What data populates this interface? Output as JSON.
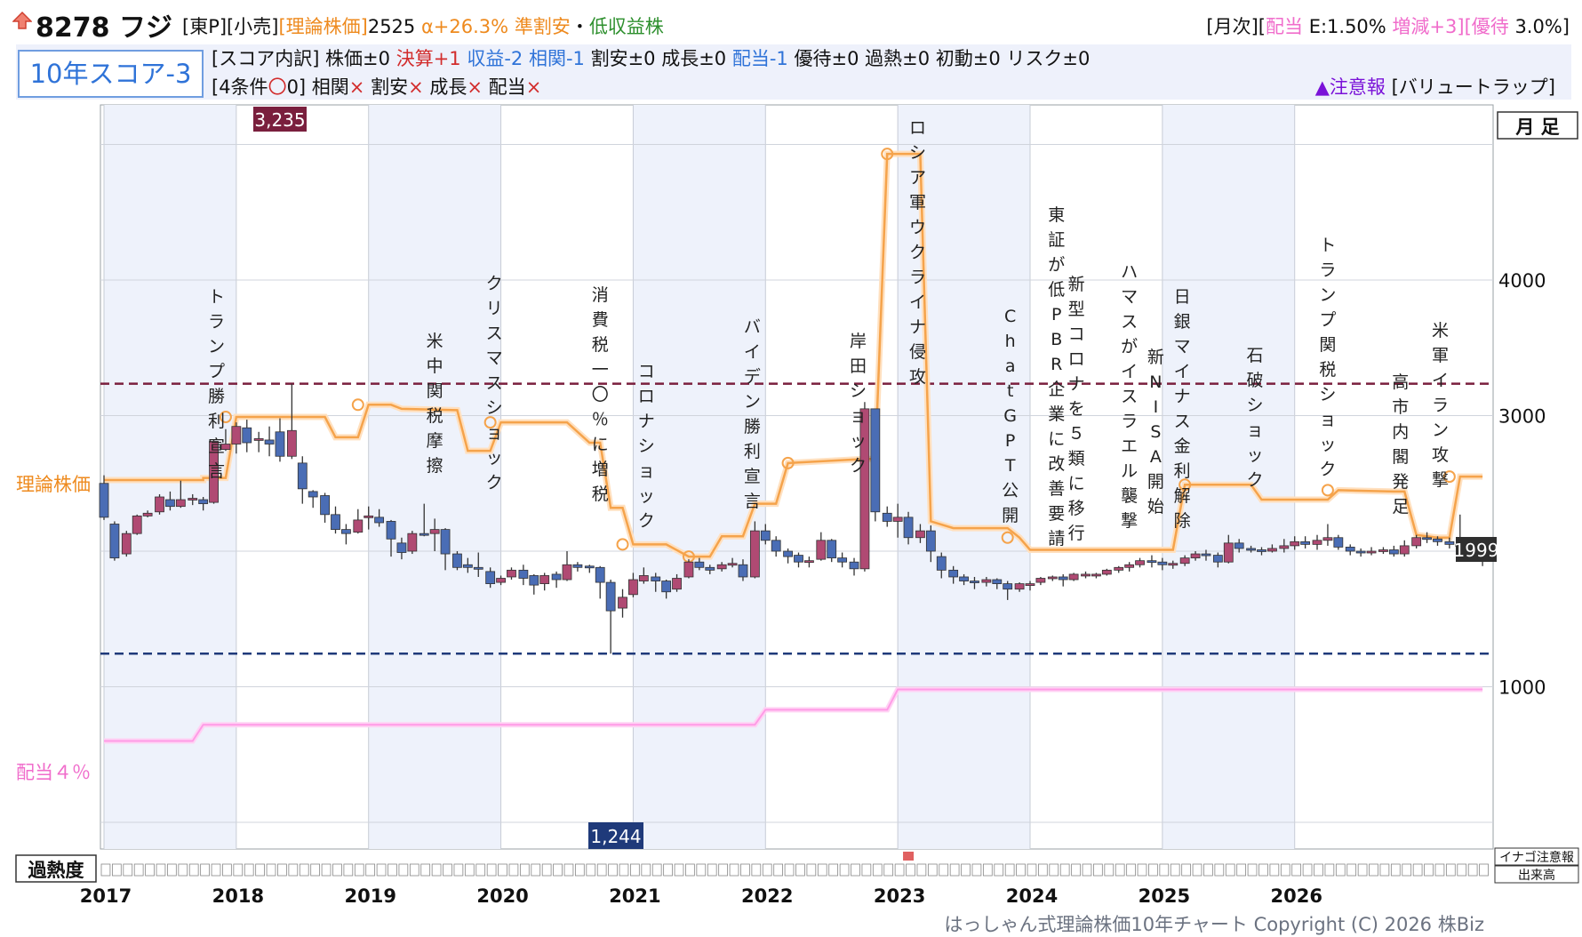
{
  "header": {
    "title": "8278 フジ",
    "meta_a": "[東P][小売]",
    "meta_b": "[理論株価]",
    "meta_c": "2525",
    "meta_d": "α+26.3%",
    "meta_e": "準割安",
    "meta_f": "・",
    "meta_g": "低収益株",
    "right_a": "[月次][",
    "right_b": "配当",
    "right_c": " E:1.50% ",
    "right_d": "増減+3][優待",
    "right_e": " 3.0%]"
  },
  "score": {
    "label": "10年スコア-3",
    "b1": "[スコア内訳] 株価±0 ",
    "b2": "決算+1",
    "b3": " 収益-2 相関-1",
    "b4": " 割安±0 成長±0 ",
    "b5": "配当-1",
    "b6": " 優待±0 過熱±0 初動±0 リスク±0",
    "c1": "[4条件",
    "c2": "〇",
    "c3": "0] 相関",
    "c4": "×",
    "c5": " 割安",
    "c6": "×",
    "c7": " 成長",
    "c8": "×",
    "c9": " 配当",
    "c10": "×",
    "warn1": "▲注意報",
    "warn2": " [バリュートラップ]"
  },
  "legend": {
    "theory": "理論株価",
    "dividend": "配当４％",
    "period": "月 足",
    "overheat": "過熱度",
    "inago": "イナゴ注意報",
    "volume": "出来高"
  },
  "footer": "はっしゃん式理論株価10年チャート Copyright (C) 2026 株Biz",
  "chart_data": {
    "type": "candlestick",
    "ylim": [
      0,
      5000
    ],
    "yticks": [
      1000,
      3000,
      4000
    ],
    "xticks": [
      "2017",
      "2018",
      "2019",
      "2020",
      "2021",
      "2022",
      "2023",
      "2024",
      "2025",
      "2026"
    ],
    "high_label": "3,235",
    "low_label": "1,244",
    "price_label": "1999",
    "high_level": 3235,
    "low_level": 1244,
    "colors": {
      "up": "#b04a73",
      "down": "#4a6db5",
      "theory": "#f5a34b",
      "dividend": "#ff9be6",
      "high": "#7a1f3d",
      "low": "#1f3a7a"
    },
    "events": [
      {
        "x": 2016.85,
        "label": "トランプ勝利宣言"
      },
      {
        "x": 2018.5,
        "label": "米中関税摩擦"
      },
      {
        "x": 2018.95,
        "label": "クリスマスショック"
      },
      {
        "x": 2019.75,
        "label": "消費税一〇％に増税"
      },
      {
        "x": 2020.1,
        "label": "コロナショック"
      },
      {
        "x": 2020.9,
        "label": "バイデン勝利宣言"
      },
      {
        "x": 2021.7,
        "label": "岸田ショック"
      },
      {
        "x": 2022.15,
        "label": "ロシア軍ウクライナ侵攻"
      },
      {
        "x": 2022.85,
        "label": "ChatGPT公開"
      },
      {
        "x": 2023.2,
        "label": "東証が低PBR企業に改善要請"
      },
      {
        "x": 2023.35,
        "label": "新型コロナを５類に移行"
      },
      {
        "x": 2023.75,
        "label": "ハマスがイスラエル襲撃"
      },
      {
        "x": 2023.95,
        "label": "新NISA開始"
      },
      {
        "x": 2024.15,
        "label": "日銀マイナス金利解除"
      },
      {
        "x": 2024.7,
        "label": "石破ショック"
      },
      {
        "x": 2025.25,
        "label": "トランプ関税ショック"
      },
      {
        "x": 2025.8,
        "label": "高市内閣発足"
      },
      {
        "x": 2026.1,
        "label": "米軍イラン攻撃"
      }
    ],
    "candles": [
      [
        2016.0,
        2500,
        2250,
        2560,
        2230
      ],
      [
        2016.08,
        2200,
        1950,
        2220,
        1930
      ],
      [
        2016.17,
        1980,
        2130,
        2150,
        1960
      ],
      [
        2016.25,
        2130,
        2260,
        2270,
        2120
      ],
      [
        2016.33,
        2260,
        2280,
        2300,
        2250
      ],
      [
        2016.42,
        2290,
        2400,
        2420,
        2270
      ],
      [
        2016.5,
        2380,
        2330,
        2440,
        2300
      ],
      [
        2016.58,
        2330,
        2380,
        2520,
        2320
      ],
      [
        2016.67,
        2380,
        2390,
        2420,
        2340
      ],
      [
        2016.75,
        2380,
        2350,
        2400,
        2300
      ],
      [
        2016.83,
        2360,
        2810,
        2820,
        2350
      ],
      [
        2016.92,
        2750,
        2790,
        2900,
        2740
      ],
      [
        2017.0,
        2790,
        2920,
        2950,
        2720
      ],
      [
        2017.08,
        2910,
        2800,
        2970,
        2730
      ],
      [
        2017.17,
        2820,
        2830,
        2880,
        2730
      ],
      [
        2017.25,
        2820,
        2790,
        2920,
        2700
      ],
      [
        2017.33,
        2880,
        2700,
        2980,
        2660
      ],
      [
        2017.42,
        2700,
        2890,
        3235,
        2680
      ],
      [
        2017.5,
        2650,
        2460,
        2700,
        2350
      ],
      [
        2017.58,
        2440,
        2400,
        2450,
        2320
      ],
      [
        2017.67,
        2410,
        2270,
        2430,
        2210
      ],
      [
        2017.75,
        2270,
        2160,
        2330,
        2130
      ],
      [
        2017.83,
        2160,
        2130,
        2200,
        2050
      ],
      [
        2017.92,
        2140,
        2230,
        2310,
        2130
      ],
      [
        2018.0,
        2250,
        2260,
        2330,
        2160
      ],
      [
        2018.08,
        2250,
        2210,
        2310,
        2180
      ],
      [
        2018.17,
        2220,
        2090,
        2230,
        1960
      ],
      [
        2018.25,
        2060,
        1990,
        2100,
        1940
      ],
      [
        2018.33,
        2000,
        2130,
        2150,
        1980
      ],
      [
        2018.42,
        2130,
        2120,
        2350,
        2110
      ],
      [
        2018.5,
        2130,
        2160,
        2240,
        2000
      ],
      [
        2018.58,
        2160,
        1980,
        2170,
        1860
      ],
      [
        2018.67,
        1980,
        1880,
        2000,
        1860
      ],
      [
        2018.75,
        1900,
        1880,
        1950,
        1840
      ],
      [
        2018.83,
        1880,
        1870,
        1990,
        1810
      ],
      [
        2018.92,
        1850,
        1760,
        1880,
        1730
      ],
      [
        2019.0,
        1770,
        1800,
        1820,
        1750
      ],
      [
        2019.08,
        1810,
        1860,
        1880,
        1790
      ],
      [
        2019.17,
        1860,
        1800,
        1900,
        1750
      ],
      [
        2019.25,
        1820,
        1750,
        1830,
        1680
      ],
      [
        2019.33,
        1760,
        1820,
        1840,
        1710
      ],
      [
        2019.42,
        1830,
        1790,
        1850,
        1730
      ],
      [
        2019.5,
        1790,
        1900,
        2000,
        1780
      ],
      [
        2019.58,
        1900,
        1880,
        1920,
        1850
      ],
      [
        2019.67,
        1890,
        1880,
        1900,
        1840
      ],
      [
        2019.75,
        1880,
        1770,
        1890,
        1650
      ],
      [
        2019.83,
        1770,
        1560,
        1790,
        1244
      ],
      [
        2019.92,
        1580,
        1660,
        1720,
        1510
      ],
      [
        2020.0,
        1680,
        1790,
        1840,
        1660
      ],
      [
        2020.08,
        1780,
        1820,
        1880,
        1760
      ],
      [
        2020.17,
        1810,
        1780,
        1840,
        1700
      ],
      [
        2020.25,
        1780,
        1700,
        1790,
        1650
      ],
      [
        2020.33,
        1720,
        1800,
        1830,
        1700
      ],
      [
        2020.42,
        1810,
        1920,
        1940,
        1800
      ],
      [
        2020.5,
        1920,
        1880,
        1950,
        1860
      ],
      [
        2020.58,
        1880,
        1860,
        1900,
        1830
      ],
      [
        2020.67,
        1870,
        1900,
        1920,
        1850
      ],
      [
        2020.75,
        1900,
        1910,
        1950,
        1880
      ],
      [
        2020.83,
        1900,
        1810,
        1940,
        1780
      ],
      [
        2020.92,
        1810,
        2150,
        2220,
        1800
      ],
      [
        2021.0,
        2150,
        2080,
        2200,
        2050
      ],
      [
        2021.08,
        2080,
        2000,
        2110,
        1960
      ],
      [
        2021.17,
        2000,
        1960,
        2020,
        1910
      ],
      [
        2021.25,
        1970,
        1920,
        1990,
        1880
      ],
      [
        2021.33,
        1920,
        1930,
        1960,
        1880
      ],
      [
        2021.42,
        1940,
        2080,
        2140,
        1930
      ],
      [
        2021.5,
        2080,
        1950,
        2090,
        1920
      ],
      [
        2021.58,
        1950,
        1920,
        1990,
        1880
      ],
      [
        2021.67,
        1920,
        1870,
        1950,
        1820
      ],
      [
        2021.75,
        1870,
        3050,
        3100,
        1850
      ],
      [
        2021.83,
        3050,
        2290,
        2600,
        2220
      ],
      [
        2021.92,
        2280,
        2220,
        2330,
        2180
      ],
      [
        2022.0,
        2220,
        2250,
        2350,
        2100
      ],
      [
        2022.08,
        2250,
        2100,
        2290,
        2050
      ],
      [
        2022.17,
        2100,
        2150,
        2200,
        2060
      ],
      [
        2022.25,
        2150,
        2000,
        2190,
        1920
      ],
      [
        2022.33,
        1960,
        1860,
        1990,
        1800
      ],
      [
        2022.42,
        1860,
        1810,
        1890,
        1760
      ],
      [
        2022.5,
        1810,
        1780,
        1830,
        1750
      ],
      [
        2022.58,
        1780,
        1770,
        1810,
        1720
      ],
      [
        2022.67,
        1770,
        1790,
        1810,
        1740
      ],
      [
        2022.75,
        1790,
        1760,
        1800,
        1720
      ],
      [
        2022.83,
        1760,
        1720,
        1780,
        1640
      ],
      [
        2022.92,
        1720,
        1760,
        1770,
        1700
      ],
      [
        2023.0,
        1760,
        1760,
        1780,
        1710
      ],
      [
        2023.08,
        1770,
        1800,
        1810,
        1750
      ],
      [
        2023.17,
        1800,
        1810,
        1820,
        1780
      ],
      [
        2023.25,
        1810,
        1790,
        1830,
        1740
      ],
      [
        2023.33,
        1790,
        1830,
        1840,
        1780
      ],
      [
        2023.42,
        1830,
        1830,
        1850,
        1800
      ],
      [
        2023.5,
        1830,
        1830,
        1840,
        1800
      ],
      [
        2023.58,
        1830,
        1860,
        1870,
        1820
      ],
      [
        2023.67,
        1860,
        1880,
        1890,
        1840
      ],
      [
        2023.75,
        1880,
        1900,
        1920,
        1850
      ],
      [
        2023.83,
        1900,
        1930,
        1950,
        1880
      ],
      [
        2023.92,
        1930,
        1920,
        1970,
        1880
      ],
      [
        2024.0,
        1920,
        1900,
        1950,
        1860
      ],
      [
        2024.08,
        1900,
        1910,
        1930,
        1870
      ],
      [
        2024.17,
        1910,
        1950,
        1970,
        1890
      ],
      [
        2024.25,
        1950,
        1980,
        2000,
        1930
      ],
      [
        2024.33,
        1980,
        1970,
        2010,
        1930
      ],
      [
        2024.42,
        1970,
        1920,
        1990,
        1880
      ],
      [
        2024.5,
        1920,
        2060,
        2120,
        1910
      ],
      [
        2024.58,
        2060,
        2020,
        2090,
        1990
      ],
      [
        2024.67,
        2020,
        2010,
        2040,
        1990
      ],
      [
        2024.75,
        2010,
        2000,
        2030,
        1970
      ],
      [
        2024.83,
        2000,
        2020,
        2050,
        1990
      ],
      [
        2024.92,
        2020,
        2040,
        2090,
        1990
      ],
      [
        2025.0,
        2040,
        2070,
        2110,
        2010
      ],
      [
        2025.08,
        2070,
        2050,
        2110,
        2020
      ],
      [
        2025.17,
        2050,
        2080,
        2120,
        2010
      ],
      [
        2025.25,
        2080,
        2100,
        2200,
        2040
      ],
      [
        2025.33,
        2100,
        2030,
        2120,
        2010
      ],
      [
        2025.42,
        2030,
        2000,
        2050,
        1970
      ],
      [
        2025.5,
        2000,
        1990,
        2020,
        1960
      ],
      [
        2025.58,
        1990,
        2000,
        2030,
        1970
      ],
      [
        2025.67,
        2000,
        2010,
        2030,
        1980
      ],
      [
        2025.75,
        2010,
        1980,
        2040,
        1960
      ],
      [
        2025.83,
        1980,
        2040,
        2080,
        1960
      ],
      [
        2025.92,
        2040,
        2100,
        2120,
        2020
      ],
      [
        2026.0,
        2100,
        2090,
        2140,
        2060
      ],
      [
        2026.08,
        2090,
        2070,
        2110,
        2040
      ],
      [
        2026.17,
        2070,
        2050,
        2100,
        2020
      ],
      [
        2026.25,
        2050,
        2040,
        2270,
        1930
      ],
      [
        2026.33,
        2040,
        2020,
        2080,
        1990
      ],
      [
        2026.42,
        2020,
        1999,
        2040,
        1890
      ]
    ],
    "theory_series": [
      [
        2016.0,
        2525
      ],
      [
        2016.75,
        2525
      ],
      [
        2016.75,
        2540
      ],
      [
        2016.92,
        2540
      ],
      [
        2017.0,
        2990
      ],
      [
        2017.42,
        2990
      ],
      [
        2017.5,
        2990
      ],
      [
        2017.67,
        2990
      ],
      [
        2017.75,
        2840
      ],
      [
        2017.92,
        2840
      ],
      [
        2018.0,
        3080
      ],
      [
        2018.17,
        3080
      ],
      [
        2018.25,
        3050
      ],
      [
        2018.67,
        3040
      ],
      [
        2018.75,
        2740
      ],
      [
        2018.92,
        2740
      ],
      [
        2019.0,
        2950
      ],
      [
        2019.42,
        2950
      ],
      [
        2019.5,
        2950
      ],
      [
        2019.67,
        2800
      ],
      [
        2019.75,
        2800
      ],
      [
        2019.83,
        2320
      ],
      [
        2019.92,
        2320
      ],
      [
        2020.0,
        2050
      ],
      [
        2020.25,
        2050
      ],
      [
        2020.42,
        1960
      ],
      [
        2020.58,
        1960
      ],
      [
        2020.67,
        2110
      ],
      [
        2020.83,
        2110
      ],
      [
        2020.92,
        2350
      ],
      [
        2021.08,
        2350
      ],
      [
        2021.17,
        2650
      ],
      [
        2021.75,
        2680
      ],
      [
        2021.83,
        2680
      ],
      [
        2021.92,
        4930
      ],
      [
        2022.08,
        4930
      ],
      [
        2022.17,
        4930
      ],
      [
        2022.25,
        2220
      ],
      [
        2022.42,
        2170
      ],
      [
        2022.75,
        2170
      ],
      [
        2022.83,
        2170
      ],
      [
        2022.92,
        2100
      ],
      [
        2023.0,
        2010
      ],
      [
        2023.25,
        2010
      ],
      [
        2023.92,
        2010
      ],
      [
        2024.0,
        2010
      ],
      [
        2024.08,
        2010
      ],
      [
        2024.17,
        2490
      ],
      [
        2024.42,
        2490
      ],
      [
        2024.67,
        2490
      ],
      [
        2024.75,
        2380
      ],
      [
        2025.08,
        2380
      ],
      [
        2025.25,
        2380
      ],
      [
        2025.33,
        2450
      ],
      [
        2025.75,
        2440
      ],
      [
        2025.83,
        2440
      ],
      [
        2025.92,
        2120
      ],
      [
        2026.08,
        2100
      ],
      [
        2026.17,
        2100
      ],
      [
        2026.25,
        2550
      ],
      [
        2026.42,
        2550
      ]
    ],
    "theory_markers": [
      [
        2016.92,
        2990
      ],
      [
        2017.92,
        3080
      ],
      [
        2018.92,
        2950
      ],
      [
        2019.92,
        2050
      ],
      [
        2020.42,
        1960
      ],
      [
        2021.17,
        2650
      ],
      [
        2021.92,
        4930
      ],
      [
        2022.83,
        2100
      ],
      [
        2024.17,
        2490
      ],
      [
        2025.25,
        2450
      ],
      [
        2026.17,
        2550
      ]
    ],
    "dividend_series": [
      [
        2016.0,
        600
      ],
      [
        2016.67,
        600
      ],
      [
        2016.75,
        720
      ],
      [
        2020.92,
        720
      ],
      [
        2021.0,
        830
      ],
      [
        2021.92,
        830
      ],
      [
        2022.0,
        980
      ],
      [
        2026.42,
        980
      ]
    ]
  }
}
